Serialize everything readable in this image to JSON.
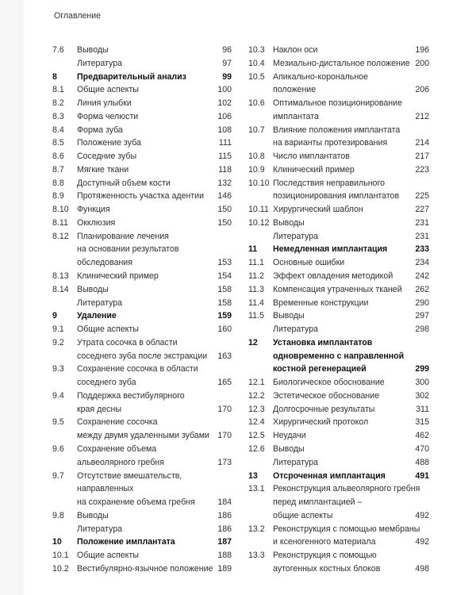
{
  "heading": "Оглавление",
  "columns": [
    [
      {
        "num": "7.6",
        "lines": [
          "Выводы"
        ],
        "page": "96"
      },
      {
        "num": "",
        "lines": [
          "Литература"
        ],
        "page": "97"
      },
      {
        "num": "8",
        "lines": [
          "Предварительный анализ"
        ],
        "page": "99",
        "bold": true
      },
      {
        "num": "8.1",
        "lines": [
          "Общие аспекты"
        ],
        "page": "100"
      },
      {
        "num": "8.2",
        "lines": [
          "Линия улыбки"
        ],
        "page": "102"
      },
      {
        "num": "8.3",
        "lines": [
          "Форма челюсти"
        ],
        "page": "106"
      },
      {
        "num": "8.4",
        "lines": [
          "Форма зуба"
        ],
        "page": "108"
      },
      {
        "num": "8.5",
        "lines": [
          "Положение зуба"
        ],
        "page": "111"
      },
      {
        "num": "8.6",
        "lines": [
          "Соседние зубы"
        ],
        "page": "115"
      },
      {
        "num": "8.7",
        "lines": [
          "Мягкие ткани"
        ],
        "page": "118"
      },
      {
        "num": "8.8",
        "lines": [
          "Доступный объем кости"
        ],
        "page": "132"
      },
      {
        "num": "8.9",
        "lines": [
          "Протяженность участка адентии"
        ],
        "page": "146"
      },
      {
        "num": "8.10",
        "lines": [
          "Функция"
        ],
        "page": "150"
      },
      {
        "num": "8.11",
        "lines": [
          "Окклюзия"
        ],
        "page": "150"
      },
      {
        "num": "8.12",
        "lines": [
          "Планирование лечения",
          "на основании результатов",
          "обследования"
        ],
        "page": "153"
      },
      {
        "num": "8.13",
        "lines": [
          "Клинический пример"
        ],
        "page": "154"
      },
      {
        "num": "8.14",
        "lines": [
          "Выводы"
        ],
        "page": "158"
      },
      {
        "num": "",
        "lines": [
          "Литература"
        ],
        "page": "158"
      },
      {
        "num": "9",
        "lines": [
          "Удаление"
        ],
        "page": "159",
        "bold": true
      },
      {
        "num": "9.1",
        "lines": [
          "Общие аспекты"
        ],
        "page": "160"
      },
      {
        "num": "9.2",
        "lines": [
          "Утрата сосочка в области",
          "соседнего зуба после экстракции"
        ],
        "page": "163"
      },
      {
        "num": "9.3",
        "lines": [
          "Сохранение сосочка в области",
          "соседнего зуба"
        ],
        "page": "165"
      },
      {
        "num": "9.4",
        "lines": [
          "Поддержка вестибулярного",
          "края десны"
        ],
        "page": "170"
      },
      {
        "num": "9.5",
        "lines": [
          "Сохранение сосочка",
          "между двумя удаленными зубами"
        ],
        "page": "170"
      },
      {
        "num": "9.6",
        "lines": [
          "Сохранение объема",
          "альвеолярного гребня"
        ],
        "page": "173"
      },
      {
        "num": "9.7",
        "lines": [
          "Отсутствие вмешательств,",
          "направленных",
          "на сохранение объема гребня"
        ],
        "page": "184"
      },
      {
        "num": "9.8",
        "lines": [
          "Выводы"
        ],
        "page": "186"
      },
      {
        "num": "",
        "lines": [
          "Литература"
        ],
        "page": "186"
      },
      {
        "num": "10",
        "lines": [
          "Положение имплантата"
        ],
        "page": "187",
        "bold": true
      },
      {
        "num": "10.1",
        "lines": [
          "Общие аспекты"
        ],
        "page": "188"
      },
      {
        "num": "10.2",
        "lines": [
          "Вестибулярно-язычное положение"
        ],
        "page": "189"
      }
    ],
    [
      {
        "num": "10.3",
        "lines": [
          "Наклон оси"
        ],
        "page": "196"
      },
      {
        "num": "10.4",
        "lines": [
          "Мезиально-дистальное положение"
        ],
        "page": "200"
      },
      {
        "num": "10.5",
        "lines": [
          "Апикально-корональное",
          "положение"
        ],
        "page": "206"
      },
      {
        "num": "10.6",
        "lines": [
          "Оптимальное позиционирование",
          "имплантата"
        ],
        "page": "212"
      },
      {
        "num": "10.7",
        "lines": [
          "Влияние положения имплантата",
          "на варианты протезирования"
        ],
        "page": "214"
      },
      {
        "num": "10.8",
        "lines": [
          "Число имплантатов"
        ],
        "page": "217"
      },
      {
        "num": "10.9",
        "lines": [
          "Клинический пример"
        ],
        "page": "223"
      },
      {
        "num": "10.10",
        "lines": [
          "Последствия неправильного",
          "позиционирования имплантатов"
        ],
        "page": "225"
      },
      {
        "num": "10.11",
        "lines": [
          "Хирургический шаблон"
        ],
        "page": "227"
      },
      {
        "num": "10.12",
        "lines": [
          "Выводы"
        ],
        "page": "231"
      },
      {
        "num": "",
        "lines": [
          "Литература"
        ],
        "page": "231"
      },
      {
        "num": "11",
        "lines": [
          "Немедленная имплантация"
        ],
        "page": "233",
        "bold": true
      },
      {
        "num": "11.1",
        "lines": [
          "Основные ошибки"
        ],
        "page": "234"
      },
      {
        "num": "11.2",
        "lines": [
          "Эффект овладения методикой"
        ],
        "page": "242"
      },
      {
        "num": "11.3",
        "lines": [
          "Компенсация утраченных тканей"
        ],
        "page": "262"
      },
      {
        "num": "11.4",
        "lines": [
          "Временные конструкции"
        ],
        "page": "290"
      },
      {
        "num": "11.5",
        "lines": [
          "Выводы"
        ],
        "page": "297"
      },
      {
        "num": "",
        "lines": [
          "Литература"
        ],
        "page": "298"
      },
      {
        "num": "12",
        "lines": [
          "Установка имплантатов",
          "одновременно с направленной",
          "костной регенерацией"
        ],
        "page": "299",
        "bold": true
      },
      {
        "num": "12.1",
        "lines": [
          "Биологическое обоснование"
        ],
        "page": "300"
      },
      {
        "num": "12.2",
        "lines": [
          "Эстетическое обоснование"
        ],
        "page": "302"
      },
      {
        "num": "12.3",
        "lines": [
          "Долгосрочные результаты"
        ],
        "page": "311"
      },
      {
        "num": "12.4",
        "lines": [
          "Хирургический протокол"
        ],
        "page": "315"
      },
      {
        "num": "12.5",
        "lines": [
          "Неудачи"
        ],
        "page": "462"
      },
      {
        "num": "12.6",
        "lines": [
          "Выводы"
        ],
        "page": "470"
      },
      {
        "num": "",
        "lines": [
          "Литература"
        ],
        "page": "488"
      },
      {
        "num": "13",
        "lines": [
          "Отсроченная имплантация"
        ],
        "page": "491",
        "bold": true
      },
      {
        "num": "13.1",
        "lines": [
          "Реконструкция альвеолярного гребня",
          "перед имплантацией –",
          "общие аспекты"
        ],
        "page": "492"
      },
      {
        "num": "13.2",
        "lines": [
          "Реконструкция с помощью мембраны",
          "и ксеногенного материала"
        ],
        "page": "492"
      },
      {
        "num": "13.3",
        "lines": [
          "Реконструкция с помощью",
          "аутогенных костных блоков"
        ],
        "page": "498"
      }
    ]
  ]
}
